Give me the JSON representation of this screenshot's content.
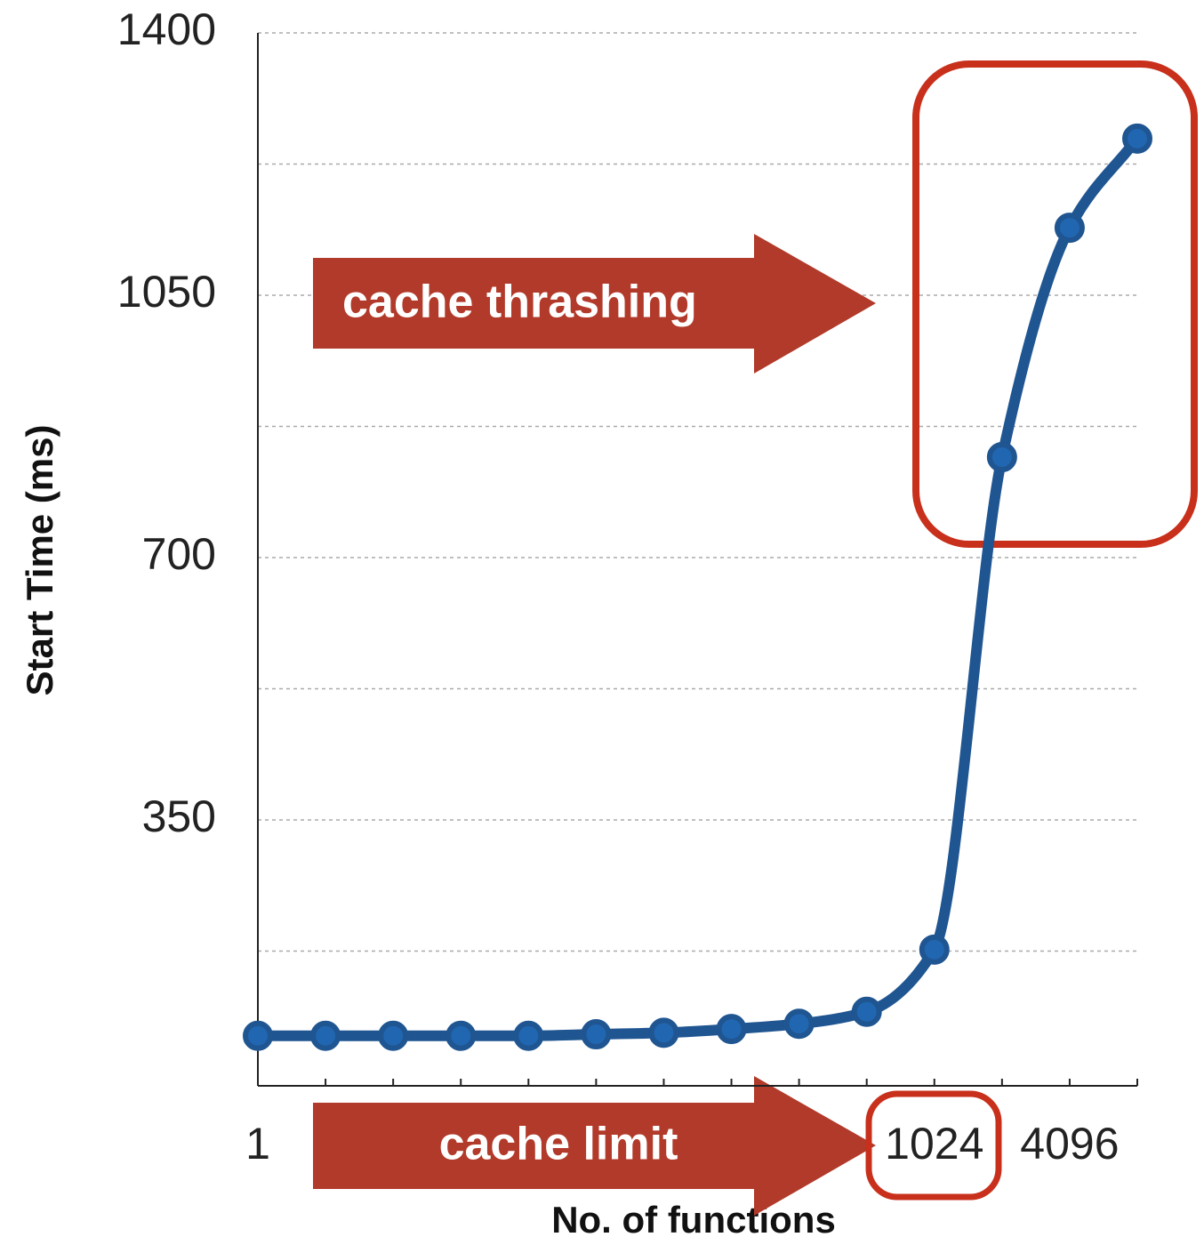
{
  "chart_data": {
    "type": "line",
    "categories": [
      "1",
      null,
      null,
      null,
      null,
      null,
      null,
      null,
      null,
      null,
      "1024",
      null,
      "4096",
      null
    ],
    "series": [
      {
        "color": "#1f5591",
        "values": [
          62,
          62,
          62,
          62,
          62,
          64,
          66,
          71,
          78,
          94,
          177,
          834,
          1140,
          1259
        ]
      }
    ],
    "ylim": [
      0,
      1400
    ],
    "yticks": [
      350,
      700,
      1050,
      1400
    ],
    "yticks_minor": [
      175,
      525,
      875,
      1225
    ],
    "grid": true,
    "xlabel": "No. of functions",
    "ylabel": "Start Time (ms)",
    "annotations": [
      "cache thrashing",
      "cache limit"
    ]
  }
}
